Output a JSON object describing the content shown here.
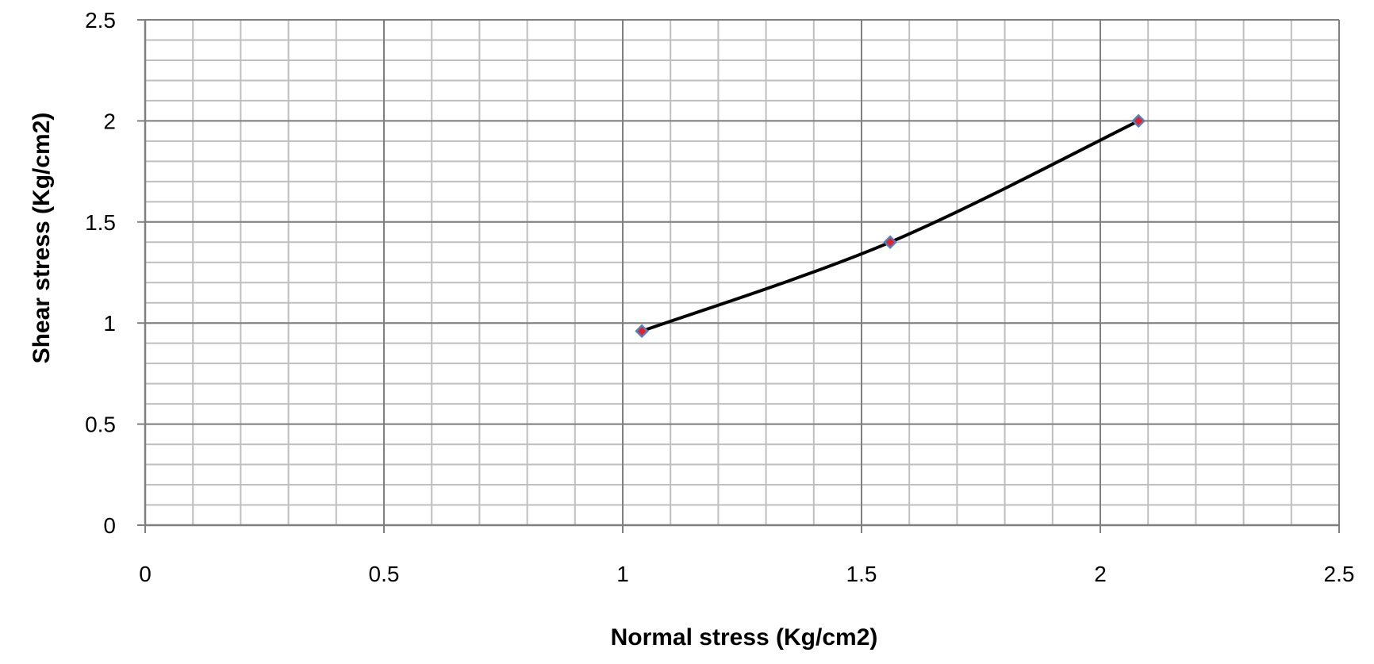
{
  "chart_data": {
    "type": "line",
    "title": "",
    "xlabel": "Normal stress (Kg/cm2)",
    "ylabel": "Shear stress (Kg/cm2)",
    "xlim": [
      0,
      2.5
    ],
    "ylim": [
      0,
      2.5
    ],
    "xticks": [
      "0",
      "0.5",
      "1",
      "1.5",
      "2",
      "2.5"
    ],
    "yticks": [
      "0",
      "0.5",
      "1",
      "1.5",
      "2",
      "2.5"
    ],
    "minor_step": 0.1,
    "grid": true,
    "legend": "none",
    "series": [
      {
        "x": [
          1.04,
          1.56,
          2.08
        ],
        "y": [
          0.96,
          1.4,
          2.0
        ],
        "line_color": "#000000",
        "marker": "diamond",
        "marker_fill": "#e8202a",
        "marker_edge": "#4f81bd"
      }
    ],
    "colors": {
      "major_grid": "#7f7f7f",
      "minor_grid": "#bfbfbf",
      "axis": "#7f7f7f"
    }
  }
}
